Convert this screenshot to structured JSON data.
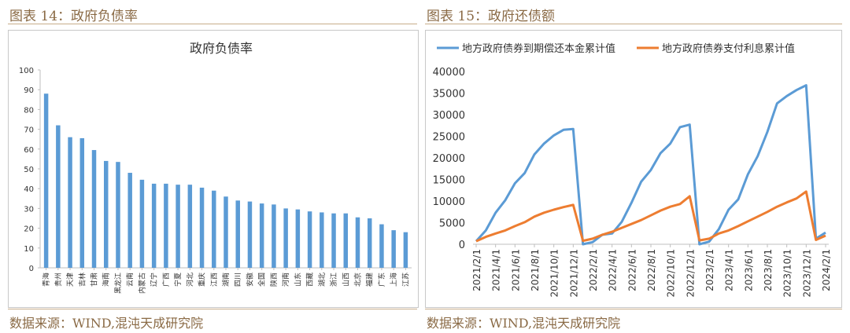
{
  "left": {
    "fig_title": "图表 14：政府负债率",
    "source": "数据来源：WIND,混沌天成研究院",
    "chart_data": {
      "type": "bar",
      "title": "政府负债率",
      "categories": [
        "青海",
        "贵州",
        "天津",
        "吉林",
        "甘肃",
        "海南",
        "黑龙江",
        "云南",
        "内蒙古",
        "辽宁",
        "广西",
        "宁夏",
        "河北",
        "重庆",
        "江西",
        "湖南",
        "四川",
        "安徽",
        "全国",
        "陕西",
        "河南",
        "山东",
        "西藏",
        "湖北",
        "浙江",
        "山西",
        "北京",
        "福建",
        "广东",
        "上海",
        "江苏"
      ],
      "values": [
        88,
        72,
        66,
        65.5,
        59.5,
        54,
        53.5,
        48,
        44.5,
        42.5,
        42.5,
        42,
        42,
        40.5,
        39,
        36,
        34,
        33.5,
        32.5,
        32,
        30,
        29.5,
        28.5,
        28,
        27.5,
        27.5,
        25.5,
        25,
        22,
        19,
        18
      ],
      "yticks": [
        "0",
        "10",
        "20",
        "30",
        "40",
        "50",
        "60",
        "70",
        "80",
        "90",
        "100"
      ],
      "ylim": [
        0,
        100
      ],
      "color": "#5b9bd5"
    }
  },
  "right": {
    "fig_title": "图表 15：政府还债额",
    "source": "数据来源：WIND,混沌天成研究院",
    "chart_data": {
      "type": "line",
      "title": "",
      "x": [
        "2021/2/1",
        "2021/3/1",
        "2021/4/1",
        "2021/5/1",
        "2021/6/1",
        "2021/7/1",
        "2021/8/1",
        "2021/9/1",
        "2021/10/1",
        "2021/11/1",
        "2021/12/1",
        "2022/1/1",
        "2022/2/1",
        "2022/3/1",
        "2022/4/1",
        "2022/5/1",
        "2022/6/1",
        "2022/7/1",
        "2022/8/1",
        "2022/9/1",
        "2022/10/1",
        "2022/11/1",
        "2022/12/1",
        "2023/1/1",
        "2023/2/1",
        "2023/3/1",
        "2023/4/1",
        "2023/5/1",
        "2023/6/1",
        "2023/7/1",
        "2023/8/1",
        "2023/9/1",
        "2023/10/1",
        "2023/11/1",
        "2023/12/1",
        "2024/1/1",
        "2024/2/1"
      ],
      "xticks": [
        "2021/2/1",
        "2021/4/1",
        "2021/6/1",
        "2021/8/1",
        "2021/10/1",
        "2021/12/1",
        "2022/2/1",
        "2022/4/1",
        "2022/6/1",
        "2022/8/1",
        "2022/10/1",
        "2022/12/1",
        "2023/2/1",
        "2023/4/1",
        "2023/6/1",
        "2023/8/1",
        "2023/10/1",
        "2023/12/1",
        "2024/2/1"
      ],
      "series": [
        {
          "name": "地方政府债券到期偿还本金累计值",
          "color": "#5b9bd5",
          "values": [
            700,
            3200,
            7300,
            10200,
            14100,
            16500,
            20800,
            23300,
            25200,
            26500,
            26700,
            0,
            500,
            2200,
            2500,
            5200,
            9600,
            14500,
            17200,
            21100,
            23300,
            27100,
            27700,
            0,
            600,
            3500,
            8000,
            10400,
            16200,
            20400,
            26000,
            32600,
            34300,
            35700,
            36800,
            1300,
            2700
          ]
        },
        {
          "name": "地方政府债券支付利息累计值",
          "color": "#ed7d31",
          "values": [
            700,
            1700,
            2500,
            3200,
            4200,
            5100,
            6400,
            7300,
            8000,
            8600,
            9100,
            800,
            1300,
            2200,
            2900,
            3800,
            4700,
            5600,
            6700,
            7800,
            8700,
            9300,
            11100,
            900,
            1300,
            2500,
            3200,
            4200,
            5300,
            6400,
            7500,
            8700,
            9700,
            10600,
            12200,
            1000,
            2000
          ]
        }
      ],
      "yticks": [
        "0",
        "5000",
        "10000",
        "15000",
        "20000",
        "25000",
        "30000",
        "35000",
        "40000"
      ],
      "ylim": [
        0,
        40000
      ]
    }
  }
}
